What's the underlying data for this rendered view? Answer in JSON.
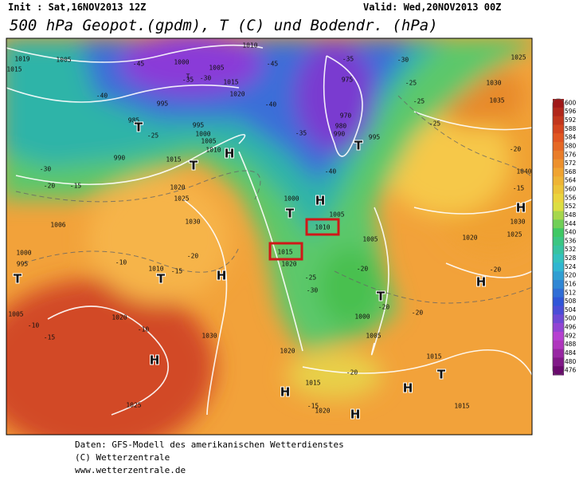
{
  "header": {
    "init": "Init : Sat,16NOV2013 12Z",
    "valid": "Valid: Wed,20NOV2013 00Z",
    "title": "500 hPa Geopot.(gpdm), T (C) und Bodendr. (hPa)"
  },
  "colorbar": {
    "ticks": [
      600,
      596,
      592,
      588,
      584,
      580,
      576,
      572,
      568,
      564,
      560,
      556,
      552,
      548,
      544,
      540,
      536,
      532,
      528,
      524,
      520,
      516,
      512,
      508,
      504,
      500,
      496,
      492,
      488,
      484,
      480,
      476
    ]
  },
  "map": {
    "labels": [
      "1015",
      "1019",
      "1005",
      "995",
      "985",
      "990",
      "1000",
      "1005",
      "1010",
      "1015",
      "1020",
      "995",
      "1000",
      "1005",
      "1010",
      "1015",
      "975",
      "970",
      "980",
      "990",
      "995",
      "1000",
      "1005",
      "1010",
      "1015",
      "1020",
      "1005",
      "1000",
      "1005",
      "1020",
      "1015",
      "1020",
      "1015",
      "1015",
      "1025",
      "1030",
      "1035",
      "1040",
      "1020",
      "1025",
      "1030",
      "1020",
      "1025",
      "1030",
      "1010",
      "1006",
      "1000",
      "995",
      "1005",
      "1020",
      "1030",
      "1025",
      "-45",
      "-40",
      "-35",
      "-30",
      "-25",
      "-30",
      "-20",
      "-15",
      "-10",
      "-20",
      "-15",
      "-10",
      "-15",
      "-10",
      "-45",
      "-40",
      "-35",
      "-40",
      "-35",
      "-30",
      "-25",
      "-25",
      "-25",
      "-20",
      "-15",
      "-20",
      "-20",
      "-20",
      "-20",
      "-15",
      "-25",
      "-30",
      "-20",
      "T",
      "H",
      "T",
      "T",
      "T",
      "H",
      "T",
      "T",
      "T",
      "H",
      "T",
      "H",
      "H",
      "H",
      "H",
      "T",
      "H",
      "H"
    ]
  },
  "footer": [
    "Daten: GFS-Modell des amerikanischen Wetterdienstes",
    "(C) Wetterzentrale",
    "www.wetterzentrale.de"
  ]
}
